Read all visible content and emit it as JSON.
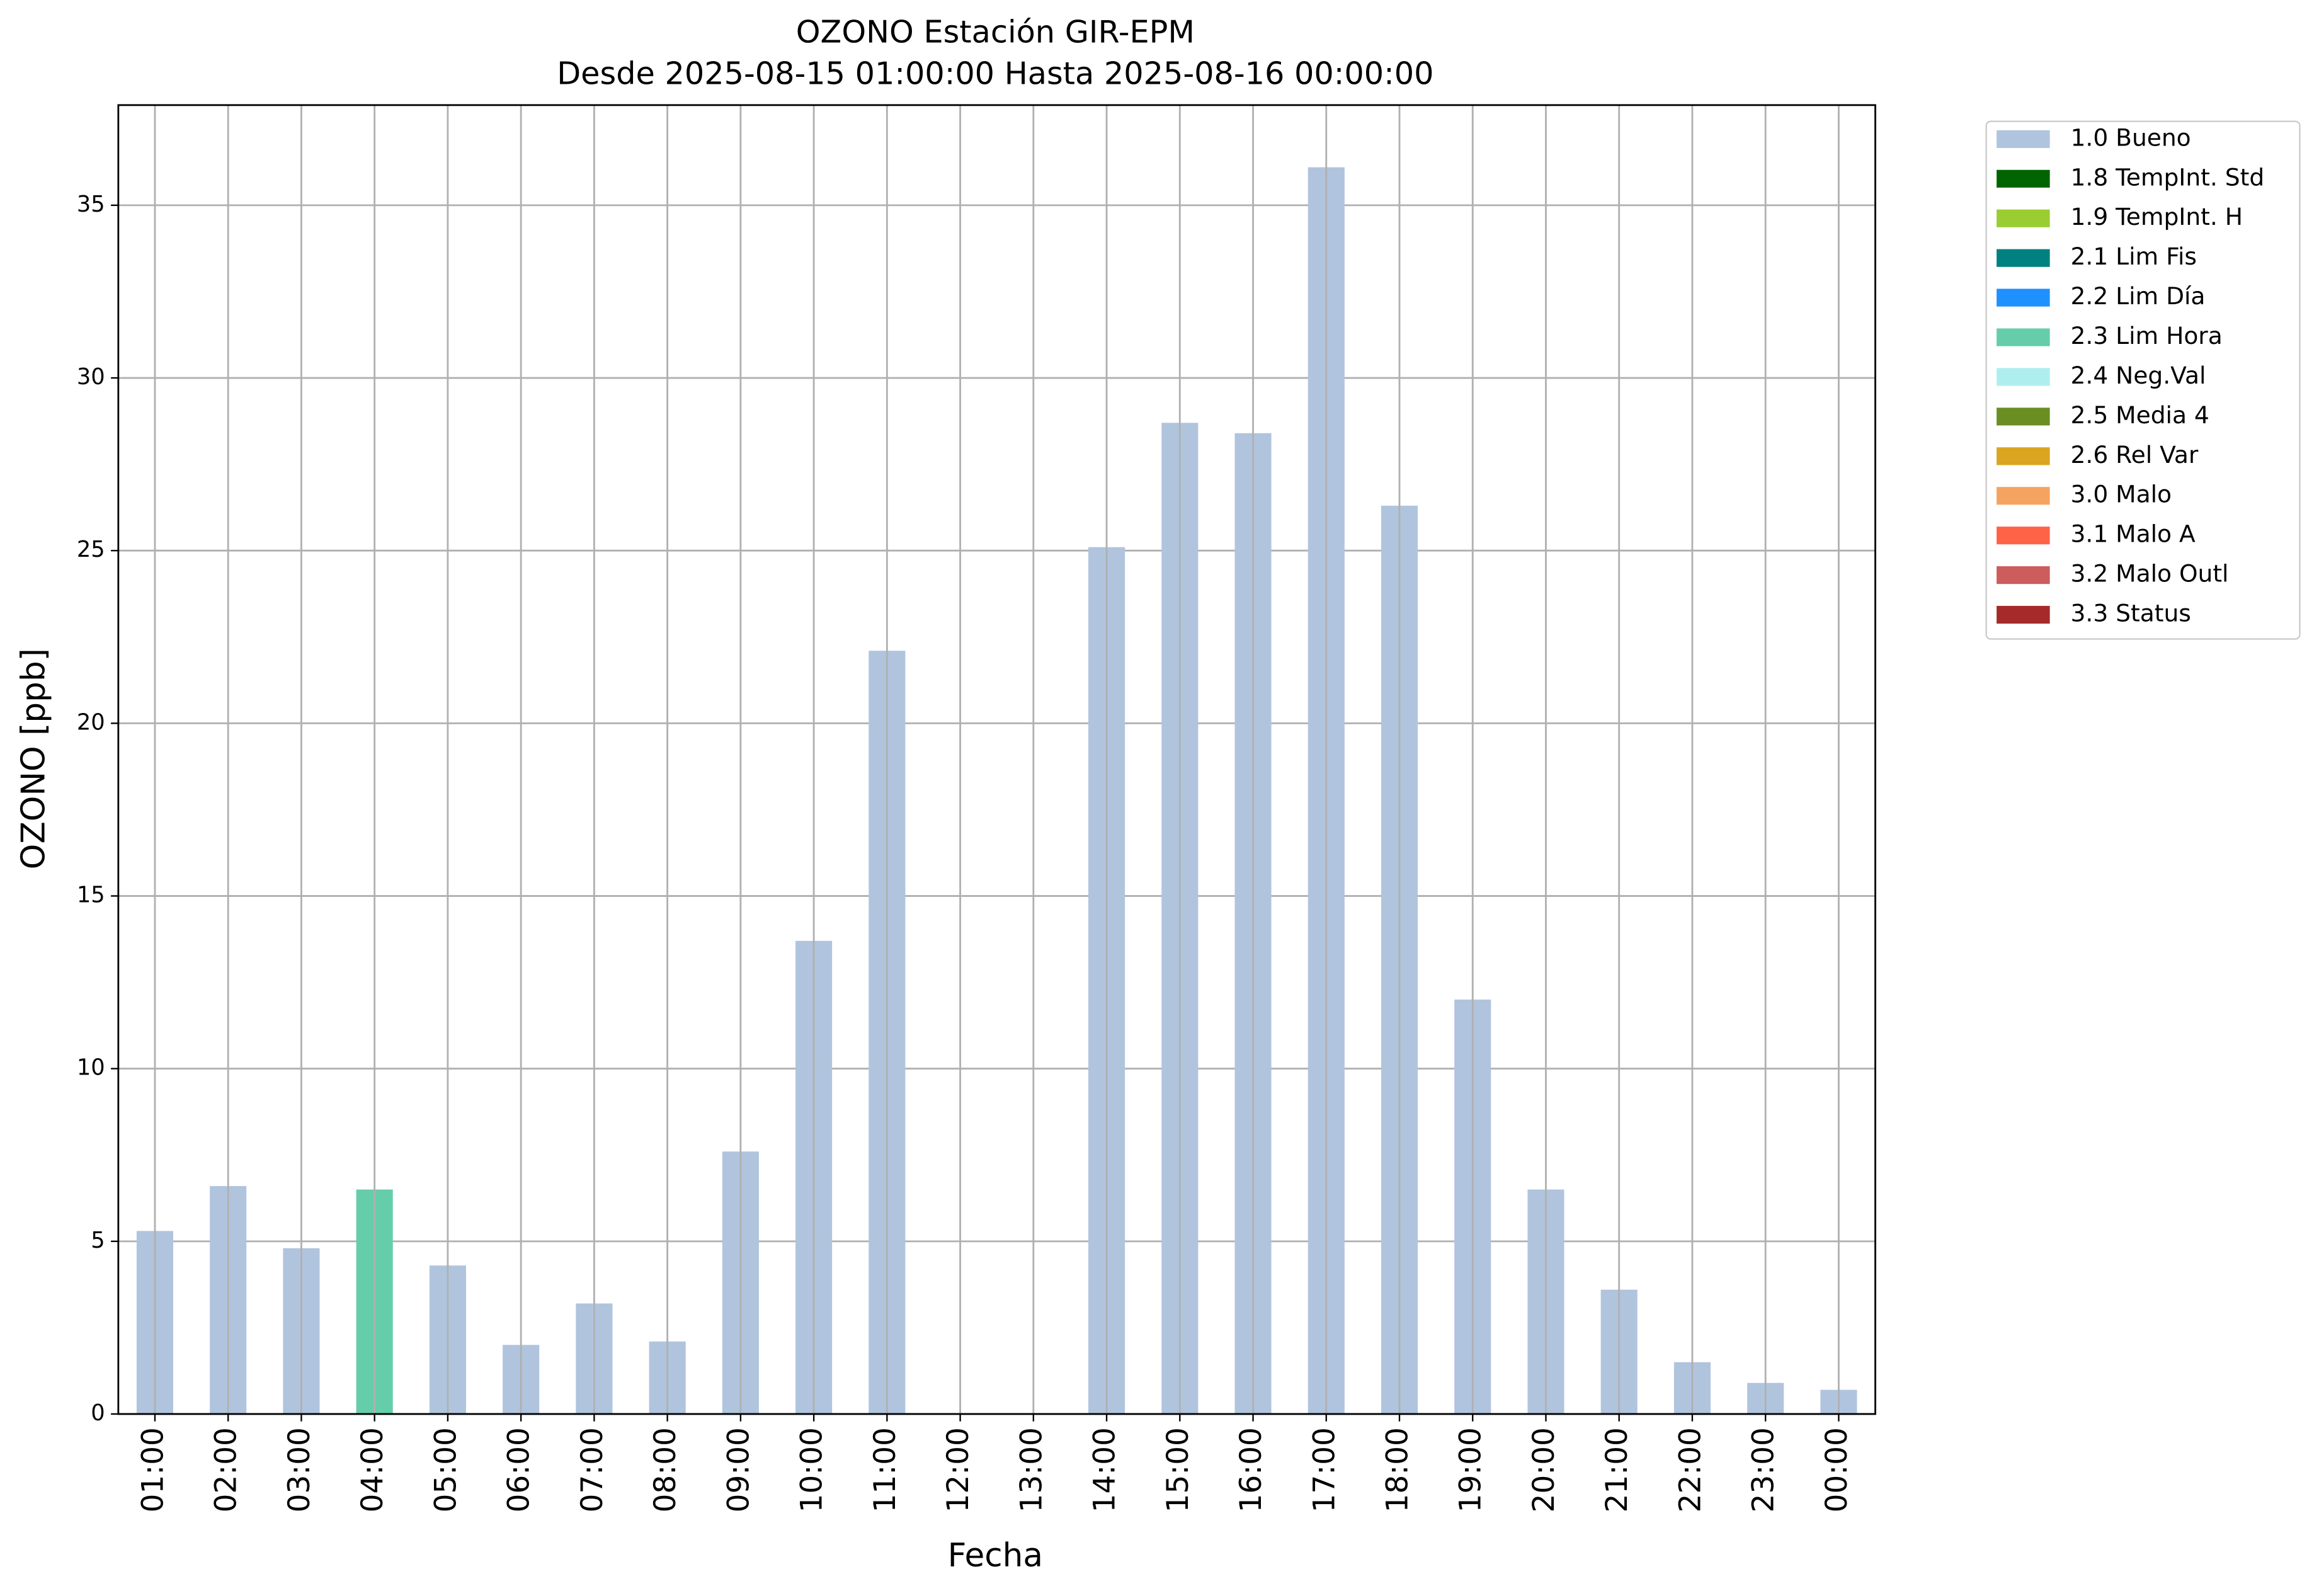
{
  "chart_data": {
    "type": "stacked_bar",
    "title": "OZONO Estación GIR-EPM",
    "subtitle": "Desde 2025-08-15 01:00:00 Hasta 2025-08-16 00:00:00",
    "x_label": "Fecha",
    "y_label": "OZONO [ppb]",
    "categories": [
      "01:00",
      "02:00",
      "03:00",
      "04:00",
      "05:00",
      "06:00",
      "07:00",
      "08:00",
      "09:00",
      "10:00",
      "11:00",
      "12:00",
      "13:00",
      "14:00",
      "15:00",
      "16:00",
      "17:00",
      "18:00",
      "19:00",
      "20:00",
      "21:00",
      "22:00",
      "23:00",
      "00:00"
    ],
    "series": [
      {
        "name": "1.0 Bueno",
        "color": "#b0c4de",
        "values": [
          5.3,
          6.6,
          4.8,
          null,
          4.3,
          2.0,
          3.2,
          2.1,
          7.6,
          13.7,
          22.1,
          null,
          null,
          25.1,
          28.7,
          28.4,
          36.1,
          26.3,
          12.0,
          6.5,
          3.6,
          1.5,
          0.9,
          0.7
        ]
      },
      {
        "name": "1.8 TempInt. Std",
        "color": "#006400",
        "values": [
          null,
          null,
          null,
          null,
          null,
          null,
          null,
          null,
          null,
          null,
          null,
          null,
          null,
          null,
          null,
          null,
          null,
          null,
          null,
          null,
          null,
          null,
          null,
          null
        ]
      },
      {
        "name": "1.9 TempInt. H",
        "color": "#9acd32",
        "values": [
          null,
          null,
          null,
          null,
          null,
          null,
          null,
          null,
          null,
          null,
          null,
          null,
          null,
          null,
          null,
          null,
          null,
          null,
          null,
          null,
          null,
          null,
          null,
          null
        ]
      },
      {
        "name": "2.1 Lim Fis",
        "color": "#008080",
        "values": [
          null,
          null,
          null,
          null,
          null,
          null,
          null,
          null,
          null,
          null,
          null,
          null,
          null,
          null,
          null,
          null,
          null,
          null,
          null,
          null,
          null,
          null,
          null,
          null
        ]
      },
      {
        "name": "2.2 Lim Día",
        "color": "#1e90ff",
        "values": [
          null,
          null,
          null,
          null,
          null,
          null,
          null,
          null,
          null,
          null,
          null,
          null,
          null,
          null,
          null,
          null,
          null,
          null,
          null,
          null,
          null,
          null,
          null,
          null
        ]
      },
      {
        "name": "2.3 Lim Hora",
        "color": "#66cdaa",
        "values": [
          null,
          null,
          null,
          6.5,
          null,
          null,
          null,
          null,
          null,
          null,
          null,
          null,
          null,
          null,
          null,
          null,
          null,
          null,
          null,
          null,
          null,
          null,
          null,
          null
        ]
      },
      {
        "name": "2.4 Neg.Val",
        "color": "#afeeee",
        "values": [
          null,
          null,
          null,
          null,
          null,
          null,
          null,
          null,
          null,
          null,
          null,
          null,
          null,
          null,
          null,
          null,
          null,
          null,
          null,
          null,
          null,
          null,
          null,
          null
        ]
      },
      {
        "name": "2.5 Media 4",
        "color": "#6b8e23",
        "values": [
          null,
          null,
          null,
          null,
          null,
          null,
          null,
          null,
          null,
          null,
          null,
          null,
          null,
          null,
          null,
          null,
          null,
          null,
          null,
          null,
          null,
          null,
          null,
          null
        ]
      },
      {
        "name": "2.6 Rel Var",
        "color": "#daa520",
        "values": [
          null,
          null,
          null,
          null,
          null,
          null,
          null,
          null,
          null,
          null,
          null,
          null,
          null,
          null,
          null,
          null,
          null,
          null,
          null,
          null,
          null,
          null,
          null,
          null
        ]
      },
      {
        "name": "3.0 Malo",
        "color": "#f4a460",
        "values": [
          null,
          null,
          null,
          null,
          null,
          null,
          null,
          null,
          null,
          null,
          null,
          null,
          null,
          null,
          null,
          null,
          null,
          null,
          null,
          null,
          null,
          null,
          null,
          null
        ]
      },
      {
        "name": "3.1 Malo A",
        "color": "#ff6347",
        "values": [
          null,
          null,
          null,
          null,
          null,
          null,
          null,
          null,
          null,
          null,
          null,
          null,
          null,
          null,
          null,
          null,
          null,
          null,
          null,
          null,
          null,
          null,
          null,
          null
        ]
      },
      {
        "name": "3.2 Malo Outl",
        "color": "#cd5c5c",
        "values": [
          null,
          null,
          null,
          null,
          null,
          null,
          null,
          null,
          null,
          null,
          null,
          null,
          null,
          null,
          null,
          null,
          null,
          null,
          null,
          null,
          null,
          null,
          null,
          null
        ]
      },
      {
        "name": "3.3 Status",
        "color": "#a52a2a",
        "values": [
          null,
          null,
          null,
          null,
          null,
          null,
          null,
          null,
          null,
          null,
          null,
          null,
          null,
          null,
          null,
          null,
          null,
          null,
          null,
          null,
          null,
          null,
          null,
          null
        ]
      }
    ],
    "ylim": [
      0,
      37.9
    ],
    "yticks": [
      0,
      5,
      10,
      15,
      20,
      25,
      30,
      35
    ],
    "grid": true,
    "legend": "outside-right"
  }
}
